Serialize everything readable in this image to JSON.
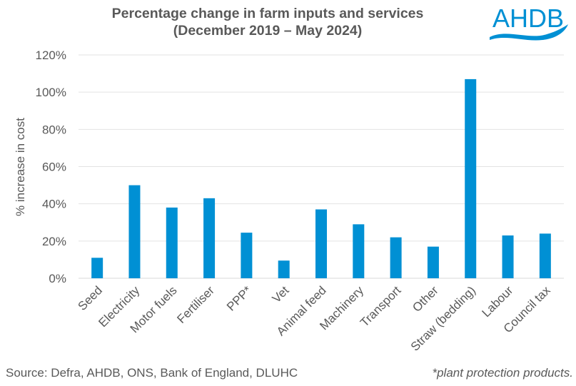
{
  "chart_data": {
    "type": "bar",
    "title": "Percentage change in farm inputs and services",
    "subtitle": "(December 2019 – May 2024)",
    "xlabel": "",
    "ylabel": "% increase in cost",
    "ylim": [
      0,
      120
    ],
    "yticks": [
      0,
      20,
      40,
      60,
      80,
      100,
      120
    ],
    "ytick_labels": [
      "0%",
      "20%",
      "40%",
      "60%",
      "80%",
      "100%",
      "120%"
    ],
    "grid": true,
    "legend": "none",
    "categories": [
      "Seed",
      "Electricity",
      "Motor fuels",
      "Fertiliser",
      "PPP*",
      "Vet",
      "Animal feed",
      "Machinery",
      "Transport",
      "Other",
      "Straw (bedding)",
      "Labour",
      "Council tax"
    ],
    "values": [
      11,
      50,
      38,
      43,
      24.5,
      9.5,
      37,
      29,
      22,
      17,
      107,
      23,
      24
    ],
    "bar_color": "#0090d4",
    "grid_color": "#e3e3e3"
  },
  "logo": {
    "text": "AHDB",
    "color": "#0090d4"
  },
  "footer": {
    "source": "Source: Defra, AHDB, ONS, Bank of England, DLUHC",
    "note": "*plant protection products."
  }
}
